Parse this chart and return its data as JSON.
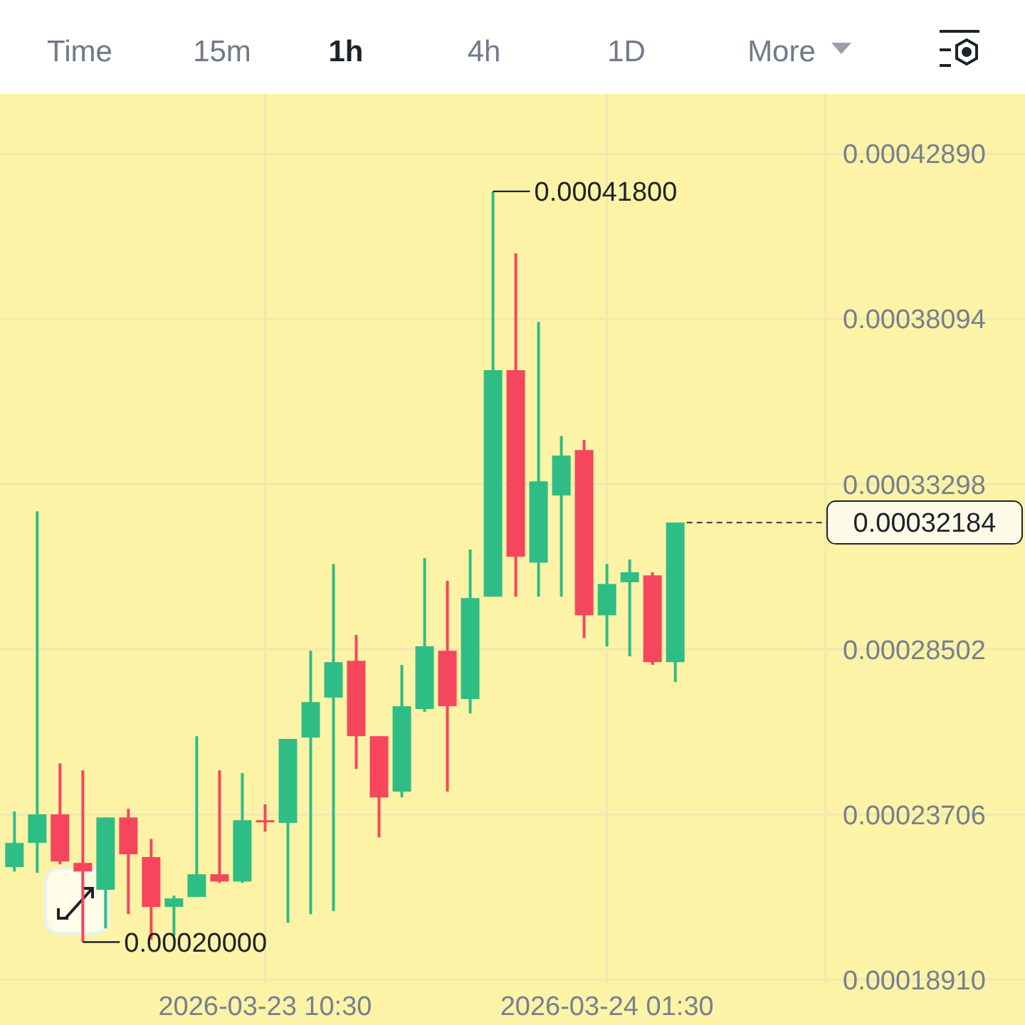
{
  "chart_data": {
    "type": "candlestick",
    "x": [
      "2026-03-22T23:30",
      "2026-03-23T00:30",
      "2026-03-23T01:30",
      "2026-03-23T02:30",
      "2026-03-23T03:30",
      "2026-03-23T04:30",
      "2026-03-23T05:30",
      "2026-03-23T06:30",
      "2026-03-23T07:30",
      "2026-03-23T08:30",
      "2026-03-23T09:30",
      "2026-03-23T10:30",
      "2026-03-23T11:30",
      "2026-03-23T12:30",
      "2026-03-23T13:30",
      "2026-03-23T14:30",
      "2026-03-23T15:30",
      "2026-03-23T16:30",
      "2026-03-23T17:30",
      "2026-03-23T18:30",
      "2026-03-23T19:30",
      "2026-03-23T20:30",
      "2026-03-23T21:30",
      "2026-03-23T22:30",
      "2026-03-23T23:30",
      "2026-03-24T00:30",
      "2026-03-24T01:30",
      "2026-03-24T02:30",
      "2026-03-24T03:30",
      "2026-03-24T04:30"
    ],
    "ohlc": [
      [
        0.0002218,
        0.0002379,
        0.0002205,
        0.0002288
      ],
      [
        0.0002288,
        0.0003251,
        0.0002201,
        0.0002371
      ],
      [
        0.0002371,
        0.0002519,
        0.0002226,
        0.0002234
      ],
      [
        0.000223,
        0.0002499,
        0.0002,
        0.0002205
      ],
      [
        0.0002152,
        0.0002362,
        0.000204,
        0.0002362
      ],
      [
        0.0002362,
        0.0002387,
        0.0002081,
        0.0002255
      ],
      [
        0.0002247,
        0.00023,
        0.0002007,
        0.0002102
      ],
      [
        0.0002102,
        0.0002135,
        0.0002019,
        0.0002127
      ],
      [
        0.0002131,
        0.0002598,
        0.0002131,
        0.0002197
      ],
      [
        0.0002197,
        0.0002499,
        0.0002172,
        0.0002176
      ],
      [
        0.0002176,
        0.0002491,
        0.0002172,
        0.0002354
      ],
      [
        0.0002354,
        0.00024,
        0.0002321,
        0.000235
      ],
      [
        0.0002346,
        0.000259,
        0.0002056,
        0.000259
      ],
      [
        0.0002594,
        0.0002846,
        0.0002081,
        0.0002697
      ],
      [
        0.000271,
        0.0003098,
        0.000209,
        0.0002813
      ],
      [
        0.0002817,
        0.0002892,
        0.0002503,
        0.0002598
      ],
      [
        0.0002598,
        0.0002598,
        0.0002304,
        0.000242
      ],
      [
        0.0002437,
        0.0002805,
        0.000242,
        0.0002685
      ],
      [
        0.0002677,
        0.0003115,
        0.0002668,
        0.0002859
      ],
      [
        0.0002846,
        0.0003049,
        0.0002437,
        0.0002685
      ],
      [
        0.0002706,
        0.000314,
        0.0002664,
        0.0002999
      ],
      [
        0.0003003,
        0.000418,
        0.0003003,
        0.0003661
      ],
      [
        0.0003661,
        0.0004,
        0.0003003,
        0.0003119
      ],
      [
        0.0003102,
        0.0003801,
        0.0003003,
        0.0003338
      ],
      [
        0.0003297,
        0.000347,
        0.0003003,
        0.0003413
      ],
      [
        0.0003429,
        0.0003458,
        0.0002883,
        0.0002949
      ],
      [
        0.0002949,
        0.0003098,
        0.0002859,
        0.000304
      ],
      [
        0.0003045,
        0.0003111,
        0.000283,
        0.0003074
      ],
      [
        0.0003065,
        0.0003074,
        0.0002805,
        0.0002813
      ],
      [
        0.0002813,
        0.00032184,
        0.0002755,
        0.00032184
      ]
    ],
    "colors": [
      "#2ebd85",
      "#2ebd85",
      "#f6465d",
      "#f6465d",
      "#2ebd85",
      "#f6465d",
      "#f6465d",
      "#2ebd85",
      "#2ebd85",
      "#f6465d",
      "#2ebd85",
      "#f6465d",
      "#2ebd85",
      "#2ebd85",
      "#2ebd85",
      "#f6465d",
      "#f6465d",
      "#2ebd85",
      "#2ebd85",
      "#f6465d",
      "#2ebd85",
      "#2ebd85",
      "#f6465d",
      "#2ebd85",
      "#2ebd85",
      "#f6465d",
      "#2ebd85",
      "#2ebd85",
      "#f6465d",
      "#2ebd85"
    ],
    "xlim": [
      "2026-03-22T22:52",
      "2026-03-24T11:06"
    ],
    "xticks": [
      {
        "value": "2026-03-23T10:30",
        "label": "2026-03-23 10:30"
      },
      {
        "value": "2026-03-24T01:30",
        "label": "2026-03-24 01:30"
      }
    ],
    "ylim": [
      0.0001875,
      0.0004463
    ],
    "yticks": [
      {
        "value": 0.0001891,
        "label": "0.00018910"
      },
      {
        "value": 0.00023706,
        "label": "0.00023706"
      },
      {
        "value": 0.00028502,
        "label": "0.00028502"
      },
      {
        "value": 0.00033298,
        "label": "0.00033298"
      },
      {
        "value": 0.00038094,
        "label": "0.00038094"
      },
      {
        "value": 0.0004289,
        "label": "0.00042890"
      }
    ],
    "grid": true,
    "ref_lines": [
      {
        "axis": "y",
        "value": 0.00032184,
        "label": "0.00032184",
        "line_style": "dashed",
        "color": "#474d57"
      }
    ],
    "annotations": [
      "Time",
      "15m",
      "1h",
      "4h",
      "1D",
      "More",
      {
        "text": "0.00041800",
        "x": "2026-03-23T20:30",
        "y": 0.000418
      },
      {
        "text": "0.00020000",
        "x": "2026-03-23T02:30",
        "y": 0.0002
      }
    ]
  }
}
